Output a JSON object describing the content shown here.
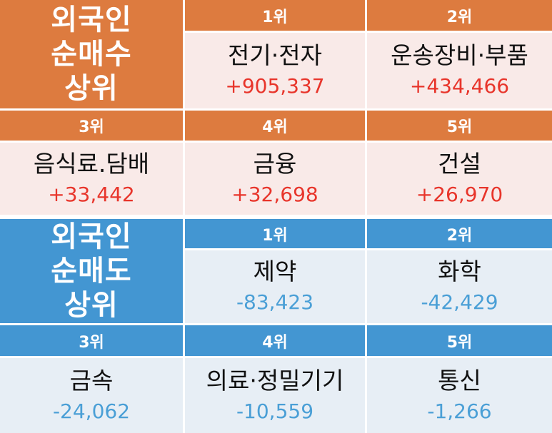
{
  "buy_section": {
    "title_lines": [
      "외국인",
      "순매수",
      "상위"
    ],
    "items": [
      {
        "rank": "1위",
        "sector": "전기·전자",
        "value": "+905,337"
      },
      {
        "rank": "2위",
        "sector": "운송장비·부품",
        "value": "+434,466"
      },
      {
        "rank": "3위",
        "sector": "음식료.담배",
        "value": "+33,442"
      },
      {
        "rank": "4위",
        "sector": "금융",
        "value": "+32,698"
      },
      {
        "rank": "5위",
        "sector": "건설",
        "value": "+26,970"
      }
    ]
  },
  "sell_section": {
    "title_lines": [
      "외국인",
      "순매도",
      "상위"
    ],
    "items": [
      {
        "rank": "1위",
        "sector": "제약",
        "value": "-83,423"
      },
      {
        "rank": "2위",
        "sector": "화학",
        "value": "-42,429"
      },
      {
        "rank": "3위",
        "sector": "금속",
        "value": "-24,062"
      },
      {
        "rank": "4위",
        "sector": "의료·정밀기기",
        "value": "-10,559"
      },
      {
        "rank": "5위",
        "sector": "통신",
        "value": "-1,266"
      }
    ]
  },
  "colors": {
    "buy_header": "#dd7b3f",
    "buy_body": "#f9eae8",
    "buy_value": "#e8352b",
    "sell_header": "#4396d2",
    "sell_body": "#e7eef5",
    "sell_value": "#4a9fd6"
  }
}
